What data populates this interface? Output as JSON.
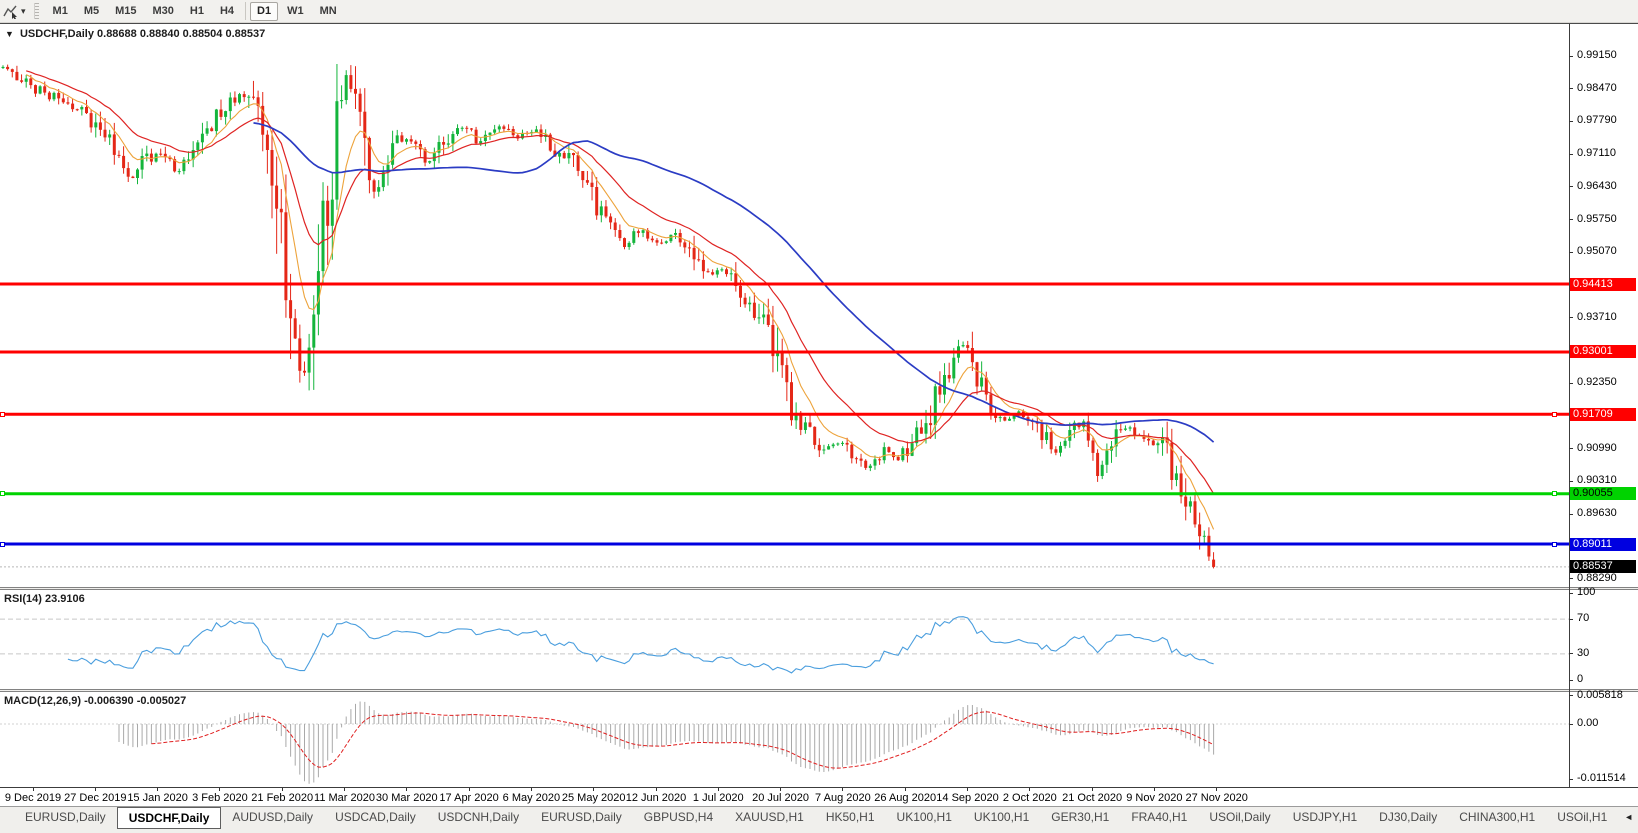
{
  "toolbar": {
    "chart_tool_caret": "▾",
    "timeframes": [
      "M1",
      "M5",
      "M15",
      "M30",
      "H1",
      "H4",
      "D1",
      "W1",
      "MN"
    ],
    "active_timeframe": "D1"
  },
  "chart": {
    "collapse_icon": "▼",
    "symbol_label": "USDCHF,Daily",
    "ohlc": "0.88688 0.88840 0.88504 0.88537"
  },
  "rsi_panel": {
    "label": "RSI(14)",
    "value": "23.9106"
  },
  "macd_panel": {
    "label": "MACD(12,26,9)",
    "value": "-0.006390 -0.005027"
  },
  "tabs": {
    "items": [
      "EURUSD,Daily",
      "USDCHF,Daily",
      "AUDUSD,Daily",
      "USDCAD,Daily",
      "USDCNH,Daily",
      "EURUSD,Daily",
      "GBPUSD,H4",
      "XAUUSD,H1",
      "HK50,H1",
      "UK100,H1",
      "UK100,H1",
      "GER30,H1",
      "FRA40,H1",
      "USOil,Daily",
      "USDJPY,H1",
      "DJ30,Daily",
      "CHINA300,H1",
      "USOil,H1"
    ],
    "active_index": 1,
    "scroll_left_icon": "◄",
    "scroll_right_icon": "►"
  },
  "chart_data": {
    "type": "candlestick",
    "symbol": "USDCHF",
    "timeframe": "Daily",
    "current": {
      "open": 0.88688,
      "high": 0.8884,
      "low": 0.88504,
      "close": 0.88537
    },
    "current_price": {
      "price": 0.88537,
      "label": "0.88537",
      "bg": "#000000",
      "text_color": "#ffffff"
    },
    "price_axis": {
      "max": 0.99815,
      "min": 0.88118,
      "ticks": [
        "0.99150",
        "0.98470",
        "0.97790",
        "0.97110",
        "0.96430",
        "0.95750",
        "0.95070",
        "0.93710",
        "0.92350",
        "0.90990",
        "0.90310",
        "0.89630",
        "0.88290"
      ]
    },
    "hlines": [
      {
        "price": 0.94413,
        "label": "0.94413",
        "color": "#ff0000",
        "text_color": "#ffffff",
        "handles": false
      },
      {
        "price": 0.93001,
        "label": "0.93001",
        "color": "#ff0000",
        "text_color": "#ffffff",
        "handles": false
      },
      {
        "price": 0.91709,
        "label": "0.91709",
        "color": "#ff0000",
        "text_color": "#ffffff",
        "handles": true
      },
      {
        "price": 0.90055,
        "label": "0.90055",
        "color": "#00d300",
        "text_color": "#000000",
        "handles": true
      },
      {
        "price": 0.89011,
        "label": "0.89011",
        "color": "#0000e0",
        "text_color": "#ffffff",
        "handles": true
      }
    ],
    "x_labels": [
      "9 Dec 2019",
      "27 Dec 2019",
      "15 Jan 2020",
      "3 Feb 2020",
      "21 Feb 2020",
      "11 Mar 2020",
      "30 Mar 2020",
      "17 Apr 2020",
      "6 May 2020",
      "25 May 2020",
      "12 Jun 2020",
      "1 Jul 2020",
      "20 Jul 2020",
      "7 Aug 2020",
      "26 Aug 2020",
      "14 Sep 2020",
      "2 Oct 2020",
      "21 Oct 2020",
      "9 Nov 2020",
      "27 Nov 2020"
    ],
    "bars": 262,
    "data_right_fraction": 0.7745,
    "price_path": [
      [
        0.0,
        0.989
      ],
      [
        0.015,
        0.9868
      ],
      [
        0.03,
        0.9842
      ],
      [
        0.05,
        0.982
      ],
      [
        0.07,
        0.979
      ],
      [
        0.09,
        0.9728
      ],
      [
        0.105,
        0.966
      ],
      [
        0.118,
        0.9702
      ],
      [
        0.132,
        0.9715
      ],
      [
        0.143,
        0.9668
      ],
      [
        0.152,
        0.9692
      ],
      [
        0.165,
        0.9745
      ],
      [
        0.18,
        0.9802
      ],
      [
        0.198,
        0.9845
      ],
      [
        0.21,
        0.98
      ],
      [
        0.222,
        0.9692
      ],
      [
        0.233,
        0.948
      ],
      [
        0.247,
        0.9235
      ],
      [
        0.258,
        0.94
      ],
      [
        0.27,
        0.9665
      ],
      [
        0.284,
        0.9888
      ],
      [
        0.296,
        0.9725
      ],
      [
        0.308,
        0.9615
      ],
      [
        0.32,
        0.972
      ],
      [
        0.335,
        0.9748
      ],
      [
        0.35,
        0.9685
      ],
      [
        0.365,
        0.9732
      ],
      [
        0.38,
        0.9772
      ],
      [
        0.395,
        0.9732
      ],
      [
        0.41,
        0.9772
      ],
      [
        0.425,
        0.9748
      ],
      [
        0.44,
        0.9762
      ],
      [
        0.455,
        0.9722
      ],
      [
        0.47,
        0.97
      ],
      [
        0.485,
        0.9622
      ],
      [
        0.5,
        0.9568
      ],
      [
        0.512,
        0.9512
      ],
      [
        0.525,
        0.9556
      ],
      [
        0.54,
        0.9522
      ],
      [
        0.555,
        0.9546
      ],
      [
        0.57,
        0.9506
      ],
      [
        0.583,
        0.9452
      ],
      [
        0.595,
        0.9472
      ],
      [
        0.608,
        0.9442
      ],
      [
        0.62,
        0.9382
      ],
      [
        0.632,
        0.9346
      ],
      [
        0.642,
        0.9242
      ],
      [
        0.652,
        0.9162
      ],
      [
        0.665,
        0.9132
      ],
      [
        0.678,
        0.9092
      ],
      [
        0.69,
        0.9112
      ],
      [
        0.702,
        0.9086
      ],
      [
        0.715,
        0.9056
      ],
      [
        0.728,
        0.9096
      ],
      [
        0.74,
        0.9082
      ],
      [
        0.752,
        0.9112
      ],
      [
        0.765,
        0.9162
      ],
      [
        0.778,
        0.9252
      ],
      [
        0.792,
        0.9322
      ],
      [
        0.8,
        0.9282
      ],
      [
        0.812,
        0.9182
      ],
      [
        0.825,
        0.9156
      ],
      [
        0.838,
        0.9172
      ],
      [
        0.85,
        0.9146
      ],
      [
        0.862,
        0.9122
      ],
      [
        0.872,
        0.9086
      ],
      [
        0.882,
        0.9142
      ],
      [
        0.895,
        0.9146
      ],
      [
        0.905,
        0.9042
      ],
      [
        0.915,
        0.9126
      ],
      [
        0.928,
        0.9142
      ],
      [
        0.94,
        0.9122
      ],
      [
        0.952,
        0.9116
      ],
      [
        0.962,
        0.9092
      ],
      [
        0.972,
        0.9012
      ],
      [
        0.982,
        0.8952
      ],
      [
        0.992,
        0.8892
      ],
      [
        1.0,
        0.8854
      ]
    ],
    "moving_averages": [
      {
        "type": "ema",
        "period": 8,
        "color": "#eda33b",
        "width": 1.1
      },
      {
        "type": "ema",
        "period": 20,
        "color": "#df2423",
        "width": 1.2
      },
      {
        "type": "sma",
        "period": 55,
        "color": "#2b3cc4",
        "width": 1.7
      }
    ],
    "rsi": {
      "period": 14,
      "current": "23.9106",
      "color": "#4a9ede",
      "ticks": [
        {
          "v": 100,
          "label": "100",
          "line": false
        },
        {
          "v": 70,
          "label": "70",
          "line": true
        },
        {
          "v": 30,
          "label": "30",
          "line": true
        },
        {
          "v": 0,
          "label": "0",
          "line": false
        }
      ]
    },
    "macd": {
      "fast": 12,
      "slow": 26,
      "signal": 9,
      "current_main": "-0.006390",
      "current_signal": "-0.005027",
      "hist_color": "#a9a9a9",
      "signal_color": "#e02020",
      "ticks": [
        {
          "v": 0.005818,
          "label": "0.005818"
        },
        {
          "v": 0,
          "label": "0.00"
        },
        {
          "v": -0.011514,
          "label": "-0.011514"
        }
      ]
    },
    "colors": {
      "up": "#14b53c",
      "down": "#e42717",
      "current_line": "#b8b8b8"
    }
  }
}
